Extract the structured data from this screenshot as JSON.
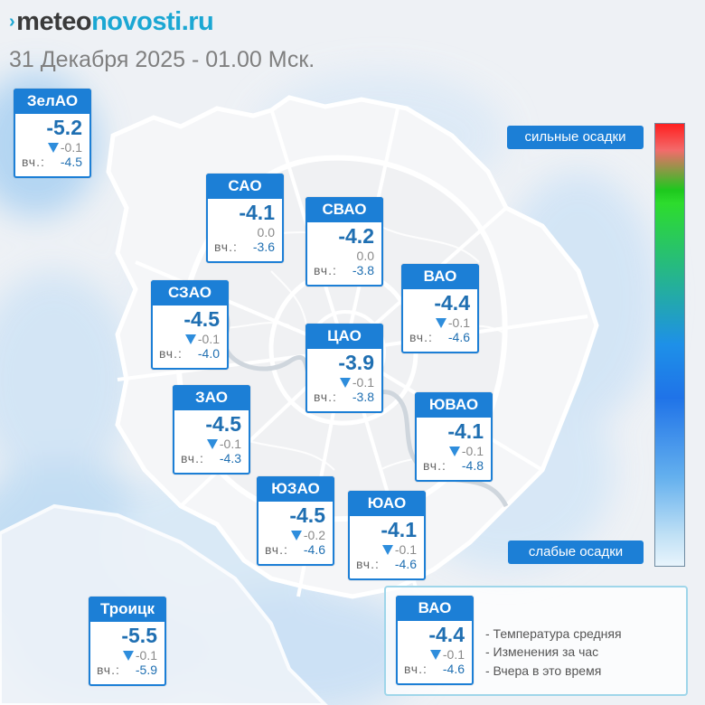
{
  "header": {
    "logo_mark": "›",
    "logo_part1": "meteo",
    "logo_part2": "novosti.ru",
    "subtitle": "31 Декабря 2025 - 01.00 Мск."
  },
  "labels": {
    "yesterday": "вч.:"
  },
  "districts": [
    {
      "id": "zelao",
      "name": "ЗелАО",
      "temp": "-5.2",
      "change": "-0.1",
      "arrow": "down",
      "yesterday": "-4.5"
    },
    {
      "id": "sao",
      "name": "САО",
      "temp": "-4.1",
      "change": "0.0",
      "arrow": "none",
      "yesterday": "-3.6"
    },
    {
      "id": "svao",
      "name": "СВАО",
      "temp": "-4.2",
      "change": "0.0",
      "arrow": "none",
      "yesterday": "-3.8"
    },
    {
      "id": "vao",
      "name": "ВАО",
      "temp": "-4.4",
      "change": "-0.1",
      "arrow": "down",
      "yesterday": "-4.6"
    },
    {
      "id": "szao",
      "name": "СЗАО",
      "temp": "-4.5",
      "change": "-0.1",
      "arrow": "down",
      "yesterday": "-4.0"
    },
    {
      "id": "cao",
      "name": "ЦАО",
      "temp": "-3.9",
      "change": "-0.1",
      "arrow": "down",
      "yesterday": "-3.8"
    },
    {
      "id": "zao",
      "name": "ЗАО",
      "temp": "-4.5",
      "change": "-0.1",
      "arrow": "down",
      "yesterday": "-4.3"
    },
    {
      "id": "yuvao",
      "name": "ЮВАО",
      "temp": "-4.1",
      "change": "-0.1",
      "arrow": "down",
      "yesterday": "-4.8"
    },
    {
      "id": "yuzao",
      "name": "ЮЗАО",
      "temp": "-4.5",
      "change": "-0.2",
      "arrow": "down",
      "yesterday": "-4.6"
    },
    {
      "id": "yuao",
      "name": "ЮАО",
      "temp": "-4.1",
      "change": "-0.1",
      "arrow": "down",
      "yesterday": "-4.6"
    },
    {
      "id": "troitsk",
      "name": "Троицк",
      "temp": "-5.5",
      "change": "-0.1",
      "arrow": "down",
      "yesterday": "-5.9"
    }
  ],
  "legend": {
    "sample": {
      "name": "ВАО",
      "temp": "-4.4",
      "change": "-0.1",
      "arrow": "down",
      "yesterday": "-4.6"
    },
    "line1": "- Температура средняя",
    "line2": "- Изменения за час",
    "line3": "- Вчера в это время"
  },
  "precip_scale": {
    "high_label": "сильные осадки",
    "low_label": "слабые осадки"
  },
  "colors": {
    "card_blue": "#1c7fd6",
    "temp_blue": "#1f6fb2",
    "arrow_blue": "#2e8ddc",
    "logo_accent": "#1ba7d3"
  }
}
